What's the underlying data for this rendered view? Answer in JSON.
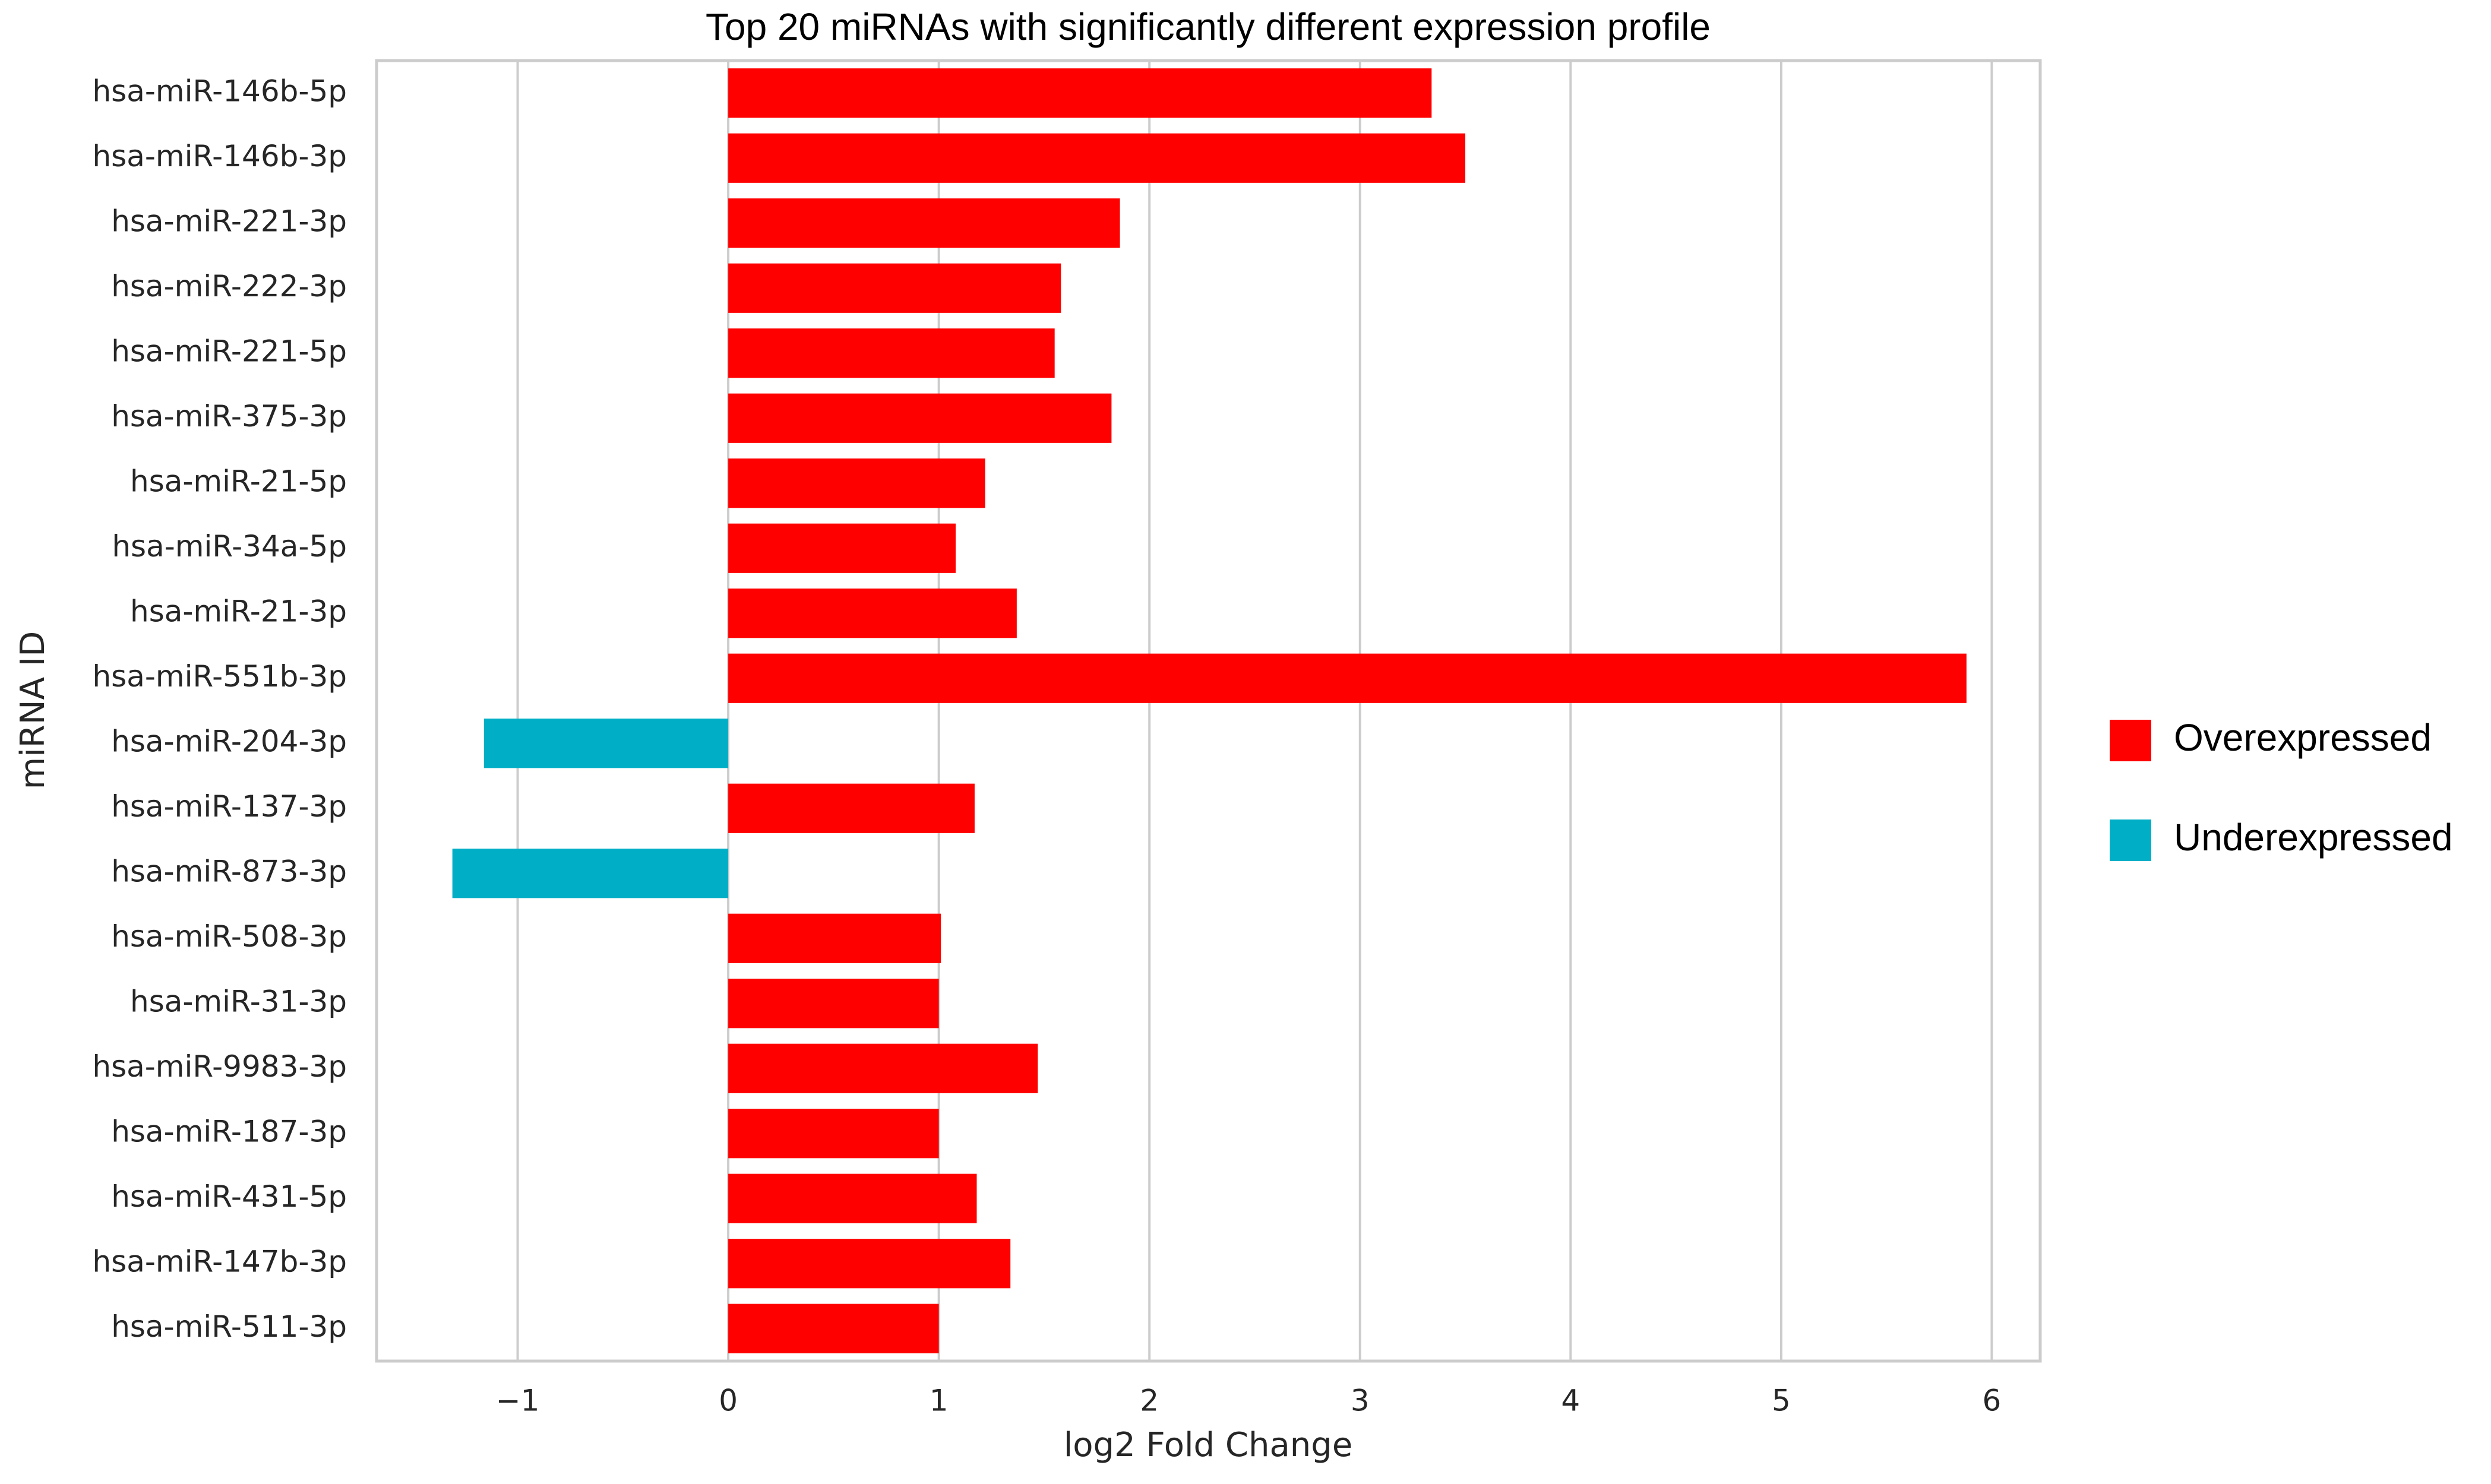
{
  "chart_data": {
    "type": "bar",
    "orientation": "horizontal",
    "title": "Top 20 miRNAs with significantly different expression profile",
    "x_label": "log2 Fold Change",
    "y_label": "miRNA ID",
    "categories": [
      "hsa-miR-146b-5p",
      "hsa-miR-146b-3p",
      "hsa-miR-221-3p",
      "hsa-miR-222-3p",
      "hsa-miR-221-5p",
      "hsa-miR-375-3p",
      "hsa-miR-21-5p",
      "hsa-miR-34a-5p",
      "hsa-miR-21-3p",
      "hsa-miR-551b-3p",
      "hsa-miR-204-3p",
      "hsa-miR-137-3p",
      "hsa-miR-873-3p",
      "hsa-miR-508-3p",
      "hsa-miR-31-3p",
      "hsa-miR-9983-3p",
      "hsa-miR-187-3p",
      "hsa-miR-431-5p",
      "hsa-miR-147b-3p",
      "hsa-miR-511-3p"
    ],
    "series": [
      {
        "name": "Overexpressed",
        "color": "#ff0000",
        "values": [
          3.34,
          3.5,
          1.86,
          1.58,
          1.55,
          1.82,
          1.22,
          1.08,
          1.37,
          5.88,
          null,
          1.17,
          null,
          1.01,
          1.0,
          1.47,
          1.0,
          1.18,
          1.34,
          1.0
        ]
      },
      {
        "name": "Underexpressed",
        "color": "#00afc6",
        "values": [
          null,
          null,
          null,
          null,
          null,
          null,
          null,
          null,
          null,
          null,
          -1.16,
          null,
          -1.31,
          null,
          null,
          null,
          null,
          null,
          null,
          null
        ]
      }
    ],
    "xlim": [
      -1.67,
      6.23
    ],
    "xticks": [
      {
        "value": -1,
        "label": "−1"
      },
      0,
      1,
      2,
      3,
      4,
      5,
      6
    ],
    "grid": true,
    "legend": "right"
  }
}
